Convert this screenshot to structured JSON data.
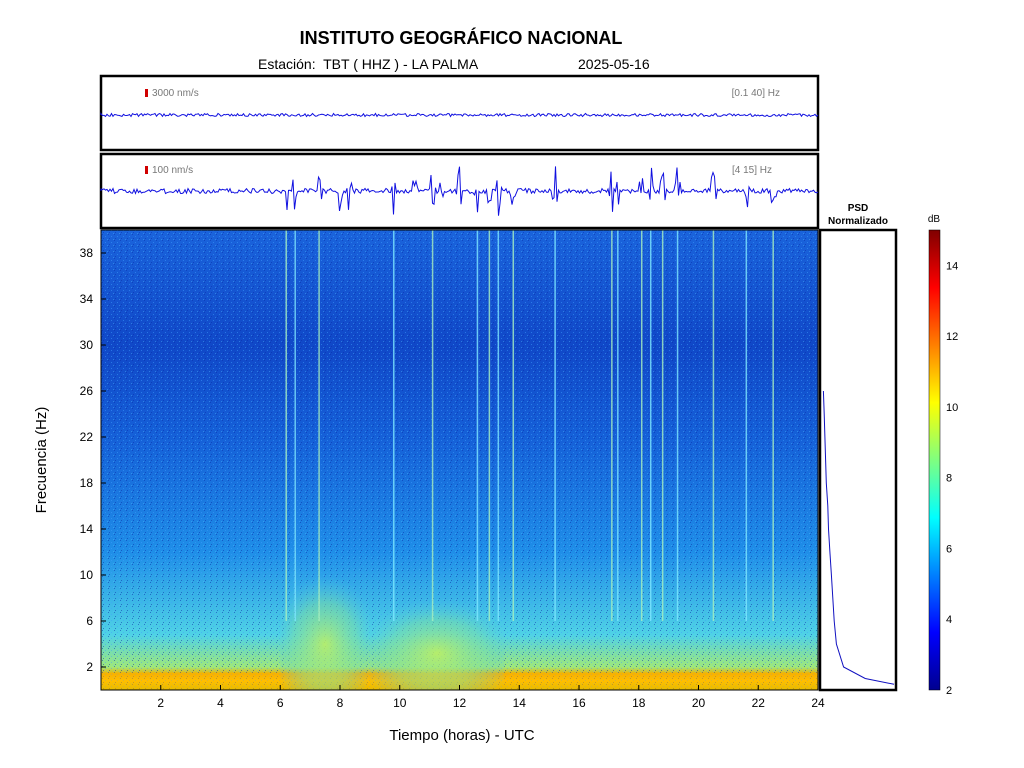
{
  "header": {
    "title": "INSTITUTO GEOGRÁFICO NACIONAL",
    "subtitle": "Estación:  TBT ( HHZ ) - LA PALMA",
    "date": "2025-05-16"
  },
  "traces": [
    {
      "scale_label": "3000 nm/s",
      "band_label": "[0.1 40] Hz"
    },
    {
      "scale_label": "100 nm/s",
      "band_label": "[4 15] Hz"
    }
  ],
  "psd_panel": {
    "title_line1": "PSD",
    "title_line2": "Normalizado"
  },
  "colorbar": {
    "unit": "dB",
    "min": 2,
    "max": 15,
    "ticks": [
      "2",
      "4",
      "6",
      "8",
      "10",
      "12",
      "14"
    ]
  },
  "chart_data": {
    "type": "heatmap",
    "xlabel": "Tiempo (horas) - UTC",
    "ylabel": "Frecuencia  (Hz)",
    "xlim": [
      0,
      24
    ],
    "ylim": [
      0,
      40
    ],
    "x_tick_labels": [
      "2",
      "4",
      "6",
      "8",
      "10",
      "12",
      "14",
      "16",
      "18",
      "20",
      "22",
      "24"
    ],
    "y_tick_labels": [
      "2",
      "6",
      "10",
      "14",
      "18",
      "22",
      "26",
      "30",
      "34",
      "38"
    ],
    "background_level_db": 4.5,
    "low_frequency_band": {
      "freq_range_hz": [
        0,
        1.5
      ],
      "level_db": 11
    },
    "elevated_intervals": [
      {
        "time_range_h": [
          6,
          9
        ],
        "freq_range_hz": [
          0,
          10
        ],
        "level_db": 7
      },
      {
        "time_range_h": [
          9,
          13.5
        ],
        "freq_range_hz": [
          0,
          8
        ],
        "level_db": 7.5
      }
    ],
    "transient_events_h": [
      6.2,
      6.5,
      7.3,
      9.8,
      11.1,
      12.6,
      13.0,
      13.3,
      13.8,
      15.2,
      17.1,
      17.3,
      18.1,
      18.4,
      18.8,
      19.3,
      20.5,
      21.6,
      22.5
    ],
    "psd_curve": {
      "freq_hz": [
        0.5,
        1,
        2,
        4,
        6,
        8,
        10,
        12,
        14,
        16,
        18,
        20,
        22,
        24,
        26
      ],
      "normalized_power": [
        1.0,
        0.6,
        0.3,
        0.2,
        0.17,
        0.15,
        0.13,
        0.11,
        0.09,
        0.08,
        0.06,
        0.05,
        0.04,
        0.03,
        0.02
      ]
    }
  }
}
